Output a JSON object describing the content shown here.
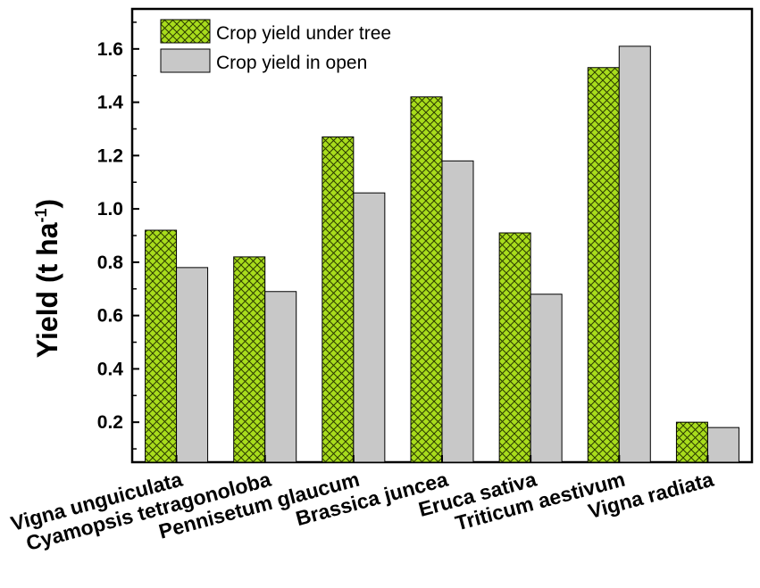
{
  "chart_data": {
    "type": "bar",
    "categories": [
      "Vigna unguiculata",
      "Cyamopsis tetragonoloba",
      "Pennisetum glaucum",
      "Brassica juncea",
      "Eruca sativa",
      "Triticum aestivum",
      "Vigna radiata"
    ],
    "series": [
      {
        "name": "Crop yield under tree",
        "values": [
          0.92,
          0.82,
          1.27,
          1.42,
          0.91,
          1.53,
          0.2
        ],
        "color": "#a8dc1c",
        "pattern": "crosshatch"
      },
      {
        "name": "Crop yield in open",
        "values": [
          0.78,
          0.69,
          1.06,
          1.18,
          0.68,
          1.61,
          0.18
        ],
        "color": "#c8c8c8",
        "pattern": "solid"
      }
    ],
    "ylabel_main": "Yield (t ha",
    "ylabel_sup": "-1",
    "ylabel_close": ")",
    "xlabel": "",
    "ylim": [
      0.05,
      1.75
    ],
    "yticks": [
      "0.2",
      "0.4",
      "0.6",
      "0.8",
      "1.0",
      "1.2",
      "1.4",
      "1.6"
    ],
    "legend_position": "top-left"
  }
}
